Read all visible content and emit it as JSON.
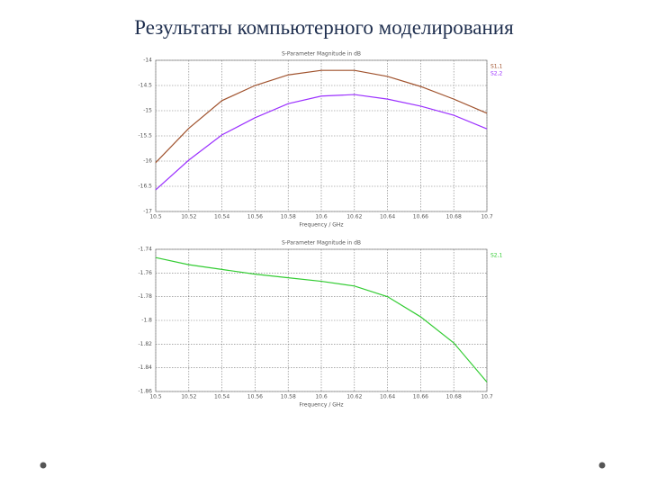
{
  "slide_title": "Результаты компьютерного моделирования",
  "chart_data": [
    {
      "type": "line",
      "title": "S-Parameter Magnitude in dB",
      "x_label": "Frequency / GHz",
      "x": [
        10.5,
        10.52,
        10.54,
        10.56,
        10.58,
        10.6,
        10.62,
        10.64,
        10.66,
        10.68,
        10.7
      ],
      "series": [
        {
          "name": "S1,1",
          "color": "#a0522d",
          "values": [
            -16.03,
            -15.35,
            -14.8,
            -14.5,
            -14.29,
            -14.2,
            -14.2,
            -14.32,
            -14.52,
            -14.77,
            -15.05
          ]
        },
        {
          "name": "S2,2",
          "color": "#9b30ff",
          "values": [
            -16.57,
            -15.98,
            -15.48,
            -15.14,
            -14.86,
            -14.71,
            -14.68,
            -14.77,
            -14.91,
            -15.09,
            -15.36
          ]
        }
      ],
      "xlim": [
        10.5,
        10.7
      ],
      "xticks": [
        10.5,
        10.52,
        10.54,
        10.56,
        10.58,
        10.6,
        10.62,
        10.64,
        10.66,
        10.68,
        10.7
      ],
      "ylim": [
        -17,
        -14
      ],
      "yticks": [
        -17,
        -16.5,
        -16,
        -15.5,
        -15,
        -14.5,
        -14
      ],
      "grid": true
    },
    {
      "type": "line",
      "title": "S-Parameter Magnitude in dB",
      "x_label": "Frequency / GHz",
      "x": [
        10.5,
        10.52,
        10.54,
        10.56,
        10.58,
        10.6,
        10.62,
        10.64,
        10.66,
        10.68,
        10.7
      ],
      "series": [
        {
          "name": "S2,1",
          "color": "#33cc33",
          "values": [
            -1.747,
            -1.753,
            -1.757,
            -1.761,
            -1.764,
            -1.767,
            -1.771,
            -1.78,
            -1.797,
            -1.819,
            -1.852
          ]
        }
      ],
      "xlim": [
        10.5,
        10.7
      ],
      "xticks": [
        10.5,
        10.52,
        10.54,
        10.56,
        10.58,
        10.6,
        10.62,
        10.64,
        10.66,
        10.68,
        10.7
      ],
      "ylim": [
        -1.86,
        -1.74
      ],
      "yticks": [
        -1.86,
        -1.84,
        -1.82,
        -1.8,
        -1.78,
        -1.76,
        -1.74
      ],
      "grid": true
    }
  ]
}
